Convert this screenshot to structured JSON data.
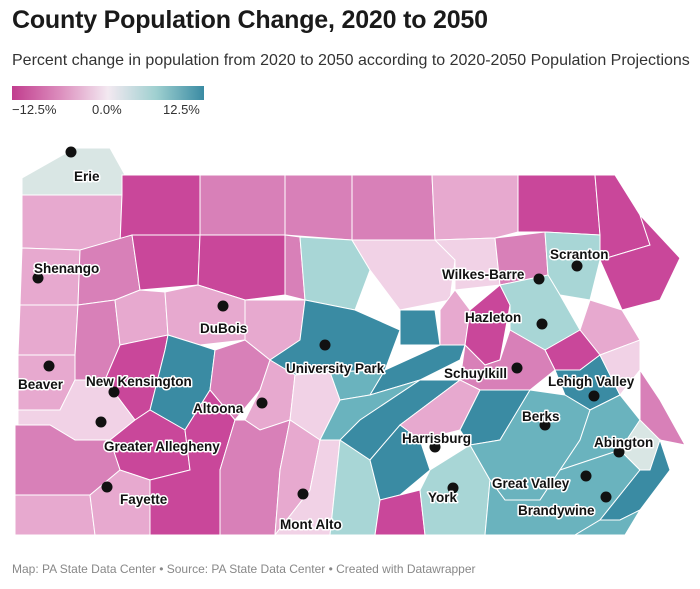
{
  "header": {
    "title": "County Population Change, 2020 to 2050",
    "subtitle": "Percent change in population from 2020 to 2050 according to 2020-2050 Population Projections"
  },
  "legend": {
    "min_label": "−12.5%",
    "mid_label": "0.0%",
    "max_label": "12.5%",
    "colors": [
      "#c13d8e",
      "#dc8dbd",
      "#f3e9f1",
      "#9fd0d0",
      "#3a8ba3"
    ]
  },
  "palette": {
    "strong_decline": "#c9479a",
    "decline": "#d880b8",
    "mild_decline": "#e7a9cf",
    "slight_decline": "#f1d2e6",
    "neutral": "#d9e6e4",
    "slight_growth": "#a8d6d6",
    "growth": "#6ab3be",
    "strong_growth": "#3a8ba3"
  },
  "cities": [
    {
      "name": "Erie"
    },
    {
      "name": "Shenango"
    },
    {
      "name": "DuBois"
    },
    {
      "name": "Beaver"
    },
    {
      "name": "New Kensington"
    },
    {
      "name": "University Park"
    },
    {
      "name": "Altoona"
    },
    {
      "name": "Greater Allegheny"
    },
    {
      "name": "Fayette"
    },
    {
      "name": "Mont Alto"
    },
    {
      "name": "Scranton"
    },
    {
      "name": "Wilkes-Barre"
    },
    {
      "name": "Hazleton"
    },
    {
      "name": "Schuylkill"
    },
    {
      "name": "Lehigh Valley"
    },
    {
      "name": "Berks"
    },
    {
      "name": "Harrisburg"
    },
    {
      "name": "Abington"
    },
    {
      "name": "York"
    },
    {
      "name": "Great Valley"
    },
    {
      "name": "Brandywine"
    }
  ],
  "footer": {
    "credit": "Map: PA State Data Center • Source: PA State Data Center • Created with Datawrapper"
  }
}
